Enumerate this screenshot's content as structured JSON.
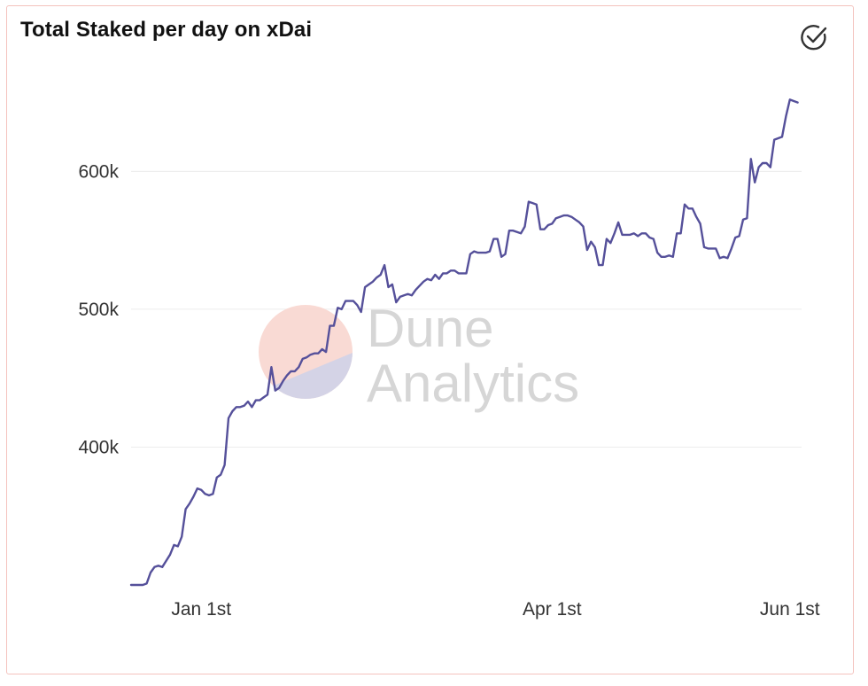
{
  "header": {
    "title": "Total Staked per day on xDai",
    "status_icon": "check-circle-icon"
  },
  "watermark": {
    "line1": "Dune",
    "line2": "Analytics"
  },
  "colors": {
    "line": "#55509a",
    "border": "#f4c2bd",
    "grid": "#ececec"
  },
  "chart_data": {
    "type": "line",
    "title": "Total Staked per day on xDai",
    "xlabel": "",
    "ylabel": "",
    "x_ticks": [
      {
        "label": "Jan 1st",
        "value": 0
      },
      {
        "label": "Apr 1st",
        "value": 90
      },
      {
        "label": "Jun 1st",
        "value": 151
      }
    ],
    "y_ticks": [
      {
        "label": "400k",
        "value": 400000
      },
      {
        "label": "500k",
        "value": 500000
      },
      {
        "label": "600k",
        "value": 600000
      }
    ],
    "xlim": [
      -18,
      154
    ],
    "ylim": [
      300000,
      660000
    ],
    "grid": true,
    "legend": "none",
    "series": [
      {
        "values": [
          [
            -18,
            300000
          ],
          [
            -15,
            300000
          ],
          [
            -14,
            301000
          ],
          [
            -13,
            309000
          ],
          [
            -12,
            313000
          ],
          [
            -11,
            314000
          ],
          [
            -10,
            313000
          ],
          [
            -8,
            322000
          ],
          [
            -7,
            329000
          ],
          [
            -6,
            328000
          ],
          [
            -5,
            335000
          ],
          [
            -4,
            355000
          ],
          [
            -3,
            359000
          ],
          [
            -2,
            364000
          ],
          [
            -1,
            370000
          ],
          [
            0,
            369000
          ],
          [
            1,
            366000
          ],
          [
            2,
            365000
          ],
          [
            3,
            366000
          ],
          [
            4,
            378000
          ],
          [
            5,
            380000
          ],
          [
            6,
            387000
          ],
          [
            7,
            421000
          ],
          [
            8,
            426000
          ],
          [
            9,
            429000
          ],
          [
            10,
            429000
          ],
          [
            11,
            430000
          ],
          [
            12,
            433000
          ],
          [
            13,
            429000
          ],
          [
            14,
            434000
          ],
          [
            15,
            434000
          ],
          [
            16,
            436000
          ],
          [
            17,
            438000
          ],
          [
            18,
            458000
          ],
          [
            19,
            441000
          ],
          [
            20,
            443000
          ],
          [
            21,
            448000
          ],
          [
            22,
            452000
          ],
          [
            23,
            455000
          ],
          [
            24,
            455000
          ],
          [
            25,
            458000
          ],
          [
            26,
            464000
          ],
          [
            27,
            465000
          ],
          [
            28,
            467000
          ],
          [
            29,
            468000
          ],
          [
            30,
            468000
          ],
          [
            31,
            471000
          ],
          [
            32,
            469000
          ],
          [
            33,
            488000
          ],
          [
            34,
            488000
          ],
          [
            35,
            501000
          ],
          [
            36,
            500000
          ],
          [
            37,
            506000
          ],
          [
            38,
            506000
          ],
          [
            39,
            506000
          ],
          [
            40,
            503000
          ],
          [
            41,
            498000
          ],
          [
            42,
            516000
          ],
          [
            43,
            518000
          ],
          [
            44,
            520000
          ],
          [
            45,
            523000
          ],
          [
            46,
            525000
          ],
          [
            47,
            532000
          ],
          [
            48,
            516000
          ],
          [
            49,
            518000
          ],
          [
            50,
            505000
          ],
          [
            51,
            509000
          ],
          [
            52,
            510000
          ],
          [
            53,
            511000
          ],
          [
            54,
            510000
          ],
          [
            55,
            514000
          ],
          [
            56,
            517000
          ],
          [
            57,
            520000
          ],
          [
            58,
            522000
          ],
          [
            59,
            521000
          ],
          [
            60,
            525000
          ],
          [
            61,
            522000
          ],
          [
            62,
            526000
          ],
          [
            63,
            526000
          ],
          [
            64,
            528000
          ],
          [
            65,
            528000
          ],
          [
            66,
            526000
          ],
          [
            67,
            526000
          ],
          [
            68,
            526000
          ],
          [
            69,
            540000
          ],
          [
            70,
            542000
          ],
          [
            71,
            541000
          ],
          [
            72,
            541000
          ],
          [
            73,
            541000
          ],
          [
            74,
            542000
          ],
          [
            75,
            551000
          ],
          [
            76,
            551000
          ],
          [
            77,
            538000
          ],
          [
            78,
            540000
          ],
          [
            79,
            557000
          ],
          [
            80,
            557000
          ],
          [
            81,
            556000
          ],
          [
            82,
            555000
          ],
          [
            83,
            560000
          ],
          [
            84,
            578000
          ],
          [
            85,
            577000
          ],
          [
            86,
            576000
          ],
          [
            87,
            558000
          ],
          [
            88,
            558000
          ],
          [
            89,
            561000
          ],
          [
            90,
            562000
          ],
          [
            91,
            566000
          ],
          [
            92,
            567000
          ],
          [
            93,
            568000
          ],
          [
            94,
            568000
          ],
          [
            95,
            567000
          ],
          [
            96,
            565000
          ],
          [
            97,
            563000
          ],
          [
            98,
            560000
          ],
          [
            99,
            543000
          ],
          [
            100,
            549000
          ],
          [
            101,
            545000
          ],
          [
            102,
            532000
          ],
          [
            103,
            532000
          ],
          [
            104,
            551000
          ],
          [
            105,
            548000
          ],
          [
            106,
            555000
          ],
          [
            107,
            563000
          ],
          [
            108,
            554000
          ],
          [
            109,
            554000
          ],
          [
            110,
            554000
          ],
          [
            111,
            555000
          ],
          [
            112,
            553000
          ],
          [
            113,
            555000
          ],
          [
            114,
            555000
          ],
          [
            115,
            552000
          ],
          [
            116,
            551000
          ],
          [
            117,
            541000
          ],
          [
            118,
            538000
          ],
          [
            119,
            538000
          ],
          [
            120,
            539000
          ],
          [
            121,
            538000
          ],
          [
            122,
            555000
          ],
          [
            123,
            555000
          ],
          [
            124,
            576000
          ],
          [
            125,
            573000
          ],
          [
            126,
            573000
          ],
          [
            127,
            567000
          ],
          [
            128,
            562000
          ],
          [
            129,
            545000
          ],
          [
            130,
            544000
          ],
          [
            131,
            544000
          ],
          [
            132,
            544000
          ],
          [
            133,
            537000
          ],
          [
            134,
            538000
          ],
          [
            135,
            537000
          ],
          [
            136,
            544000
          ],
          [
            137,
            552000
          ],
          [
            138,
            553000
          ],
          [
            139,
            565000
          ],
          [
            140,
            566000
          ],
          [
            141,
            609000
          ],
          [
            142,
            592000
          ],
          [
            143,
            603000
          ],
          [
            144,
            606000
          ],
          [
            145,
            606000
          ],
          [
            146,
            603000
          ],
          [
            147,
            623000
          ],
          [
            148,
            624000
          ],
          [
            149,
            625000
          ],
          [
            150,
            640000
          ],
          [
            151,
            652000
          ],
          [
            152,
            651000
          ],
          [
            153,
            650000
          ]
        ]
      }
    ]
  }
}
